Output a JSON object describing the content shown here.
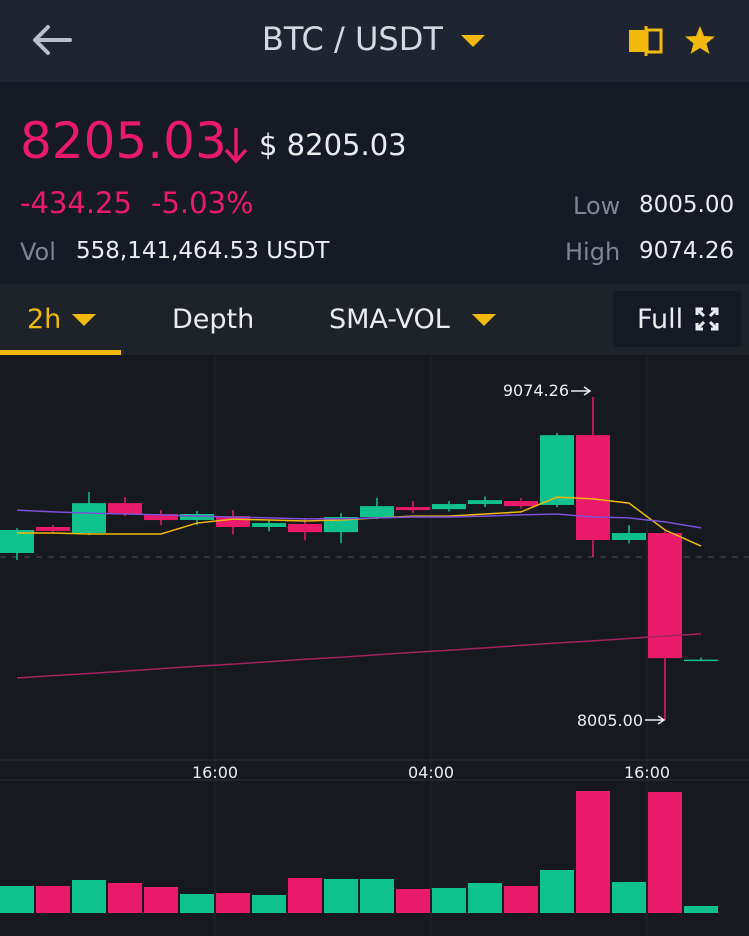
{
  "header": {
    "pair": "BTC / USDT"
  },
  "ticker": {
    "price": "8205.03",
    "usd_price": "$ 8205.03",
    "change": "-434.25",
    "change_pct": "-5.03%",
    "low_label": "Low",
    "low": "8005.00",
    "vol_label": "Vol",
    "vol": "558,141,464.53 USDT",
    "high_label": "High",
    "high": "9074.26"
  },
  "tabs": {
    "interval": "2h",
    "depth": "Depth",
    "indicator": "SMA-VOL",
    "full": "Full"
  },
  "chart_data": {
    "type": "candlestick",
    "up_color": "#0fc28b",
    "down_color": "#ea1a6a",
    "ylim": [
      7872.7,
      9206.7
    ],
    "xticks": [
      {
        "value": 5.5,
        "label": "16:00"
      },
      {
        "value": 11.5,
        "label": "04:00"
      },
      {
        "value": 17.5,
        "label": "16:00"
      }
    ],
    "candles": [
      {
        "o": 8558,
        "h": 8640,
        "l": 8535,
        "c": 8634
      },
      {
        "o": 8644,
        "h": 8650,
        "l": 8625,
        "c": 8631
      },
      {
        "o": 8624,
        "h": 8760,
        "l": 8617,
        "c": 8723
      },
      {
        "o": 8723,
        "h": 8743,
        "l": 8680,
        "c": 8687
      },
      {
        "o": 8687,
        "h": 8700,
        "l": 8650,
        "c": 8667
      },
      {
        "o": 8667,
        "h": 8697,
        "l": 8650,
        "c": 8687
      },
      {
        "o": 8680,
        "h": 8700,
        "l": 8620,
        "c": 8644
      },
      {
        "o": 8644,
        "h": 8667,
        "l": 8630,
        "c": 8657
      },
      {
        "o": 8654,
        "h": 8670,
        "l": 8600,
        "c": 8627
      },
      {
        "o": 8627,
        "h": 8690,
        "l": 8590,
        "c": 8677
      },
      {
        "o": 8677,
        "h": 8740,
        "l": 8670,
        "c": 8713
      },
      {
        "o": 8710,
        "h": 8730,
        "l": 8690,
        "c": 8700
      },
      {
        "o": 8703,
        "h": 8730,
        "l": 8695,
        "c": 8720
      },
      {
        "o": 8720,
        "h": 8745,
        "l": 8710,
        "c": 8733
      },
      {
        "o": 8730,
        "h": 8740,
        "l": 8705,
        "c": 8713
      },
      {
        "o": 8717,
        "h": 8955,
        "l": 8710,
        "c": 8948
      },
      {
        "o": 8948,
        "h": 9074.26,
        "l": 8545,
        "c": 8601
      },
      {
        "o": 8601,
        "h": 8650,
        "l": 8590,
        "c": 8624
      },
      {
        "o": 8624,
        "h": 8630,
        "l": 8005.0,
        "c": 8210
      },
      {
        "o": 8204,
        "h": 8212,
        "l": 8200,
        "c": 8205.03
      }
    ],
    "lines": [
      {
        "color": "#f0b90b",
        "values": [
          8624,
          8624,
          8621,
          8621,
          8621,
          8657,
          8670,
          8667,
          8664,
          8667,
          8674,
          8680,
          8680,
          8687,
          8694,
          8743,
          8737,
          8723,
          8634,
          8581
        ]
      },
      {
        "color": "#7b4fd6",
        "values": [
          8700,
          8694,
          8690,
          8687,
          8684,
          8680,
          8677,
          8674,
          8671,
          8671,
          8674,
          8677,
          8677,
          8680,
          8684,
          8687,
          8677,
          8674,
          8661,
          8641
        ]
      },
      {
        "color": "#a3245e",
        "values": [
          8144,
          8152,
          8159,
          8167,
          8175,
          8183,
          8190,
          8198,
          8206,
          8213,
          8221,
          8229,
          8236,
          8244,
          8252,
          8260,
          8267,
          8275,
          8283,
          8290
        ]
      }
    ],
    "annotations": {
      "high": "9074.26",
      "low": "8005.00"
    },
    "volume": {
      "ylim": [
        0,
        130
      ],
      "values": [
        27,
        27,
        33,
        30,
        26,
        19,
        20,
        18,
        35,
        34,
        34,
        24,
        25,
        30,
        27,
        43,
        122,
        31,
        121,
        7
      ]
    }
  }
}
